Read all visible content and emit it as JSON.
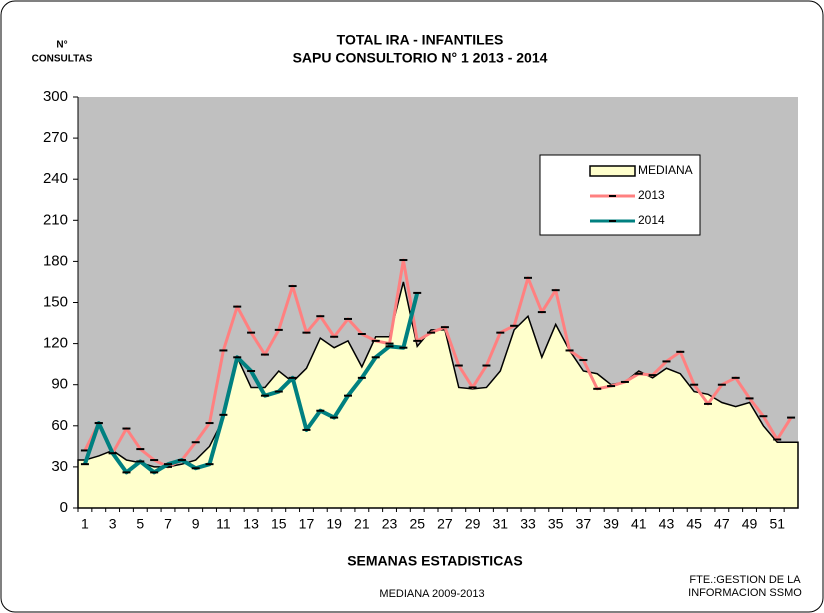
{
  "chart_data": {
    "type": "line",
    "title": "TOTAL IRA - INFANTILES",
    "subtitle": "SAPU CONSULTORIO N° 1   2013 - 2014",
    "y_label": [
      "N°",
      "CONSULTAS"
    ],
    "x_label": "SEMANAS ESTADISTICAS",
    "note": "MEDIANA 2009-2013",
    "source": [
      "FTE.:GESTION DE LA",
      "INFORMACION  SSMO"
    ],
    "categories": [
      1,
      null,
      3,
      null,
      5,
      null,
      7,
      null,
      9,
      null,
      11,
      null,
      13,
      null,
      15,
      null,
      17,
      null,
      19,
      null,
      21,
      null,
      23,
      null,
      25,
      null,
      27,
      null,
      29,
      null,
      31,
      null,
      33,
      null,
      35,
      null,
      37,
      null,
      39,
      null,
      41,
      null,
      43,
      null,
      45,
      null,
      47,
      null,
      49,
      null,
      51,
      null
    ],
    "series": [
      {
        "name": "MEDIANA",
        "color": "#ffffcc",
        "area": true,
        "values": [
          35,
          38,
          42,
          35,
          33,
          30,
          30,
          32,
          35,
          45,
          65,
          110,
          88,
          88,
          100,
          92,
          102,
          124,
          117,
          122,
          103,
          125,
          125,
          165,
          118,
          130,
          130,
          88,
          87,
          88,
          100,
          130,
          140,
          110,
          134,
          115,
          100,
          98,
          90,
          92,
          100,
          95,
          102,
          98,
          85,
          83,
          77,
          74,
          77,
          60,
          48,
          48
        ]
      },
      {
        "name": "2013",
        "color": "#ff8080",
        "values": [
          42,
          62,
          40,
          58,
          43,
          35,
          30,
          35,
          48,
          62,
          115,
          147,
          128,
          112,
          130,
          162,
          128,
          140,
          125,
          138,
          127,
          122,
          120,
          181,
          122,
          128,
          132,
          104,
          88,
          104,
          128,
          133,
          168,
          143,
          159,
          115,
          108,
          87,
          89,
          92,
          98,
          97,
          107,
          114,
          90,
          76,
          90,
          95,
          80,
          67,
          50,
          66
        ]
      },
      {
        "name": "2014",
        "color": "#008080",
        "values": [
          32,
          62,
          40,
          26,
          34,
          26,
          32,
          35,
          29,
          32,
          68,
          110,
          100,
          82,
          85,
          95,
          57,
          71,
          66,
          82,
          95,
          110,
          118,
          117,
          157,
          null,
          null,
          null,
          null,
          null,
          null,
          null,
          null,
          null,
          null,
          null,
          null,
          null,
          null,
          null,
          null,
          null,
          null,
          null,
          null,
          null,
          null,
          null,
          null,
          null,
          null,
          null
        ]
      }
    ],
    "ylim": [
      0,
      300
    ],
    "yticks": [
      0,
      30,
      60,
      90,
      120,
      150,
      180,
      210,
      240,
      270,
      300
    ],
    "grid": false,
    "legend": "upper right",
    "plot_background": "#c0c0c0"
  }
}
